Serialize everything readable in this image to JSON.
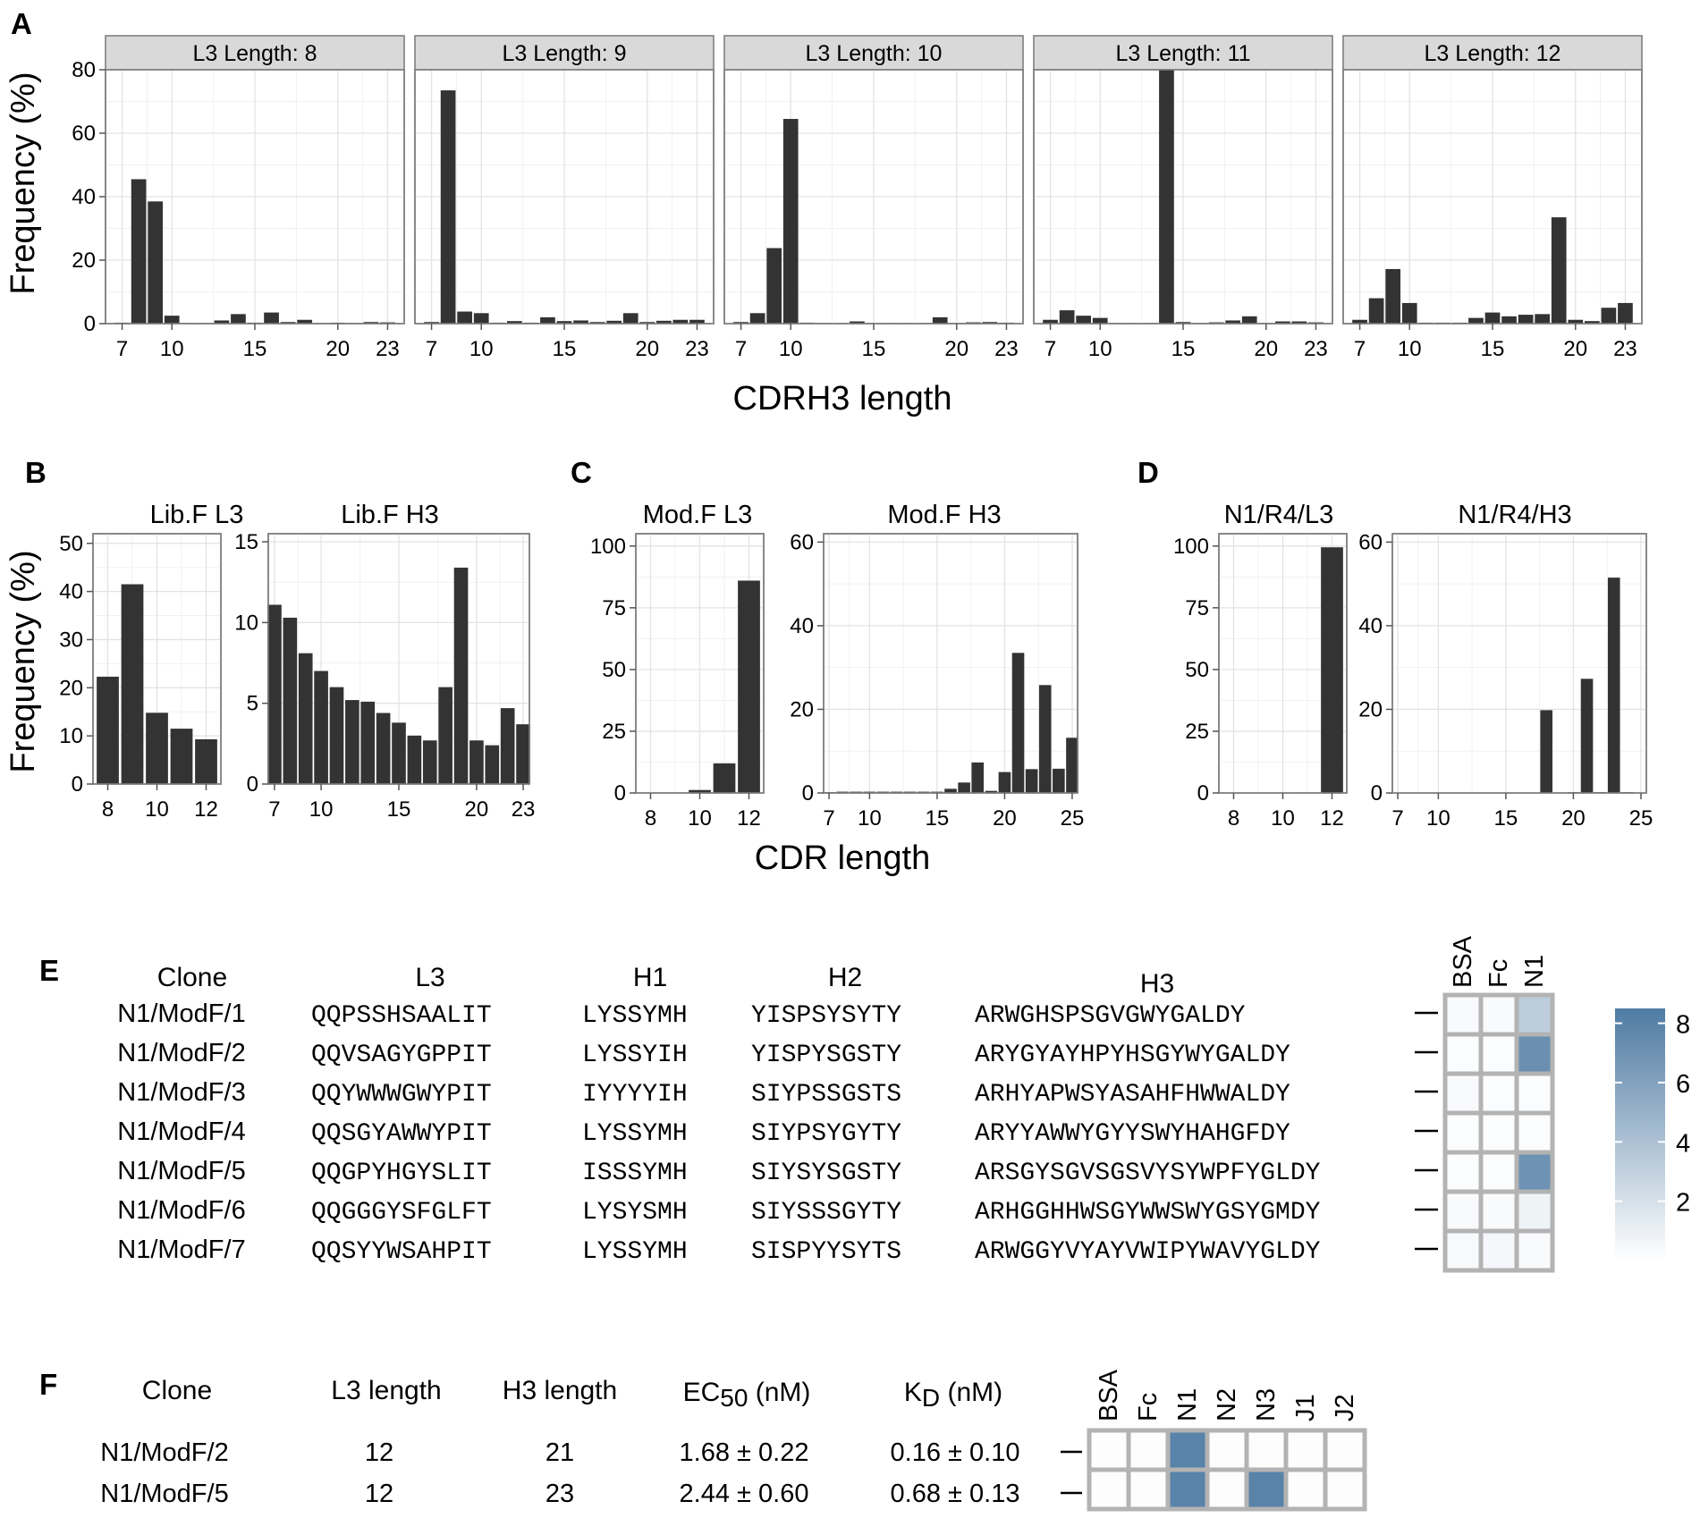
{
  "panels": {
    "A": "A",
    "B": "B",
    "C": "C",
    "D": "D",
    "E": "E",
    "F": "F"
  },
  "chart_data": [
    {
      "id": "A",
      "type": "bar",
      "title": "",
      "xlabel": "CDRH3 length",
      "ylabel": "Frequency (%)",
      "ylim": [
        0,
        80
      ],
      "yticks": [
        0,
        20,
        40,
        60,
        80
      ],
      "xlim": [
        6,
        24
      ],
      "xticks": [
        7,
        10,
        15,
        20,
        23
      ],
      "categories": [
        7,
        8,
        9,
        10,
        11,
        12,
        13,
        14,
        15,
        16,
        17,
        18,
        19,
        20,
        21,
        22,
        23
      ],
      "facets": [
        {
          "label": "L3 Length: 8",
          "values": [
            0.3,
            45.5,
            38.5,
            2.5,
            0.2,
            0.2,
            1.0,
            3.0,
            0.3,
            3.5,
            0.5,
            1.2,
            0.2,
            0.3,
            0.2,
            0.5,
            0.4
          ]
        },
        {
          "label": "L3 Length: 9",
          "values": [
            0.5,
            73.5,
            3.8,
            3.3,
            0.3,
            0.8,
            0.3,
            2.0,
            0.8,
            1.0,
            0.5,
            0.9,
            3.3,
            0.5,
            0.9,
            1.2,
            1.2
          ]
        },
        {
          "label": "L3 Length: 10",
          "values": [
            0.5,
            3.3,
            23.8,
            64.5,
            0.3,
            0.2,
            0.2,
            0.7,
            0.2,
            0.2,
            0.2,
            0.2,
            2.0,
            0.2,
            0.4,
            0.5,
            0.3
          ]
        },
        {
          "label": "L3 Length: 11",
          "values": [
            1.2,
            4.2,
            2.5,
            1.8,
            0.2,
            0.2,
            0.2,
            80.0,
            0.5,
            0.2,
            0.4,
            1.0,
            2.3,
            0.2,
            0.7,
            0.7,
            0.4
          ]
        },
        {
          "label": "L3 Length: 12",
          "values": [
            1.2,
            8.0,
            17.2,
            6.5,
            0.3,
            0.3,
            0.3,
            1.8,
            3.5,
            2.3,
            2.8,
            3.0,
            33.5,
            1.2,
            0.8,
            5.0,
            6.5
          ]
        }
      ]
    },
    {
      "id": "B",
      "type": "bar",
      "title": "",
      "xlabel": "CDR length",
      "ylabel": "Frequency (%)",
      "subplots": [
        {
          "title": "Lib.F L3",
          "ylim": [
            0,
            52
          ],
          "yticks": [
            0,
            10,
            20,
            30,
            40,
            50
          ],
          "xlim": [
            7.4,
            12.6
          ],
          "xticks": [
            8,
            10,
            12
          ],
          "categories": [
            8,
            9,
            10,
            11,
            12
          ],
          "values": [
            22.3,
            41.5,
            14.8,
            11.5,
            9.3
          ]
        },
        {
          "title": "Lib.F H3",
          "ylim": [
            0,
            15.5
          ],
          "yticks": [
            0,
            5,
            10,
            15
          ],
          "xlim": [
            6.6,
            23.4
          ],
          "xticks": [
            7,
            10,
            15,
            20,
            23
          ],
          "categories": [
            7,
            8,
            9,
            10,
            11,
            12,
            13,
            14,
            15,
            16,
            17,
            18,
            19,
            20,
            21,
            22,
            23
          ],
          "values": [
            11.1,
            10.3,
            8.1,
            7.0,
            6.0,
            5.2,
            5.1,
            4.4,
            3.8,
            3.0,
            2.7,
            6.0,
            13.4,
            2.7,
            2.4,
            4.7,
            3.7
          ]
        }
      ]
    },
    {
      "id": "C",
      "type": "bar",
      "title": "",
      "xlabel": "CDR length",
      "ylabel": "",
      "subplots": [
        {
          "title": "Mod.F L3",
          "ylim": [
            0,
            105
          ],
          "yticks": [
            0,
            25,
            50,
            75,
            100
          ],
          "xlim": [
            7.4,
            12.6
          ],
          "xticks": [
            8,
            10,
            12
          ],
          "categories": [
            8,
            9,
            10,
            11,
            12
          ],
          "values": [
            0.2,
            0.2,
            1.2,
            12.0,
            86.0
          ]
        },
        {
          "title": "Mod.F H3",
          "ylim": [
            0,
            62
          ],
          "yticks": [
            0,
            20,
            40,
            60
          ],
          "xlim": [
            6.6,
            25.4
          ],
          "xticks": [
            7,
            10,
            15,
            20,
            25
          ],
          "categories": [
            7,
            8,
            9,
            10,
            11,
            12,
            13,
            14,
            15,
            16,
            17,
            18,
            19,
            20,
            21,
            22,
            23,
            24,
            25
          ],
          "values": [
            0.2,
            0.3,
            0.3,
            0.3,
            0.3,
            0.3,
            0.3,
            0.3,
            0.3,
            1.0,
            2.5,
            7.3,
            0.5,
            5.0,
            33.5,
            5.7,
            25.8,
            5.8,
            13.2
          ]
        }
      ]
    },
    {
      "id": "D",
      "type": "bar",
      "title": "",
      "xlabel": "",
      "ylabel": "",
      "subplots": [
        {
          "title": "N1/R4/L3",
          "ylim": [
            0,
            105
          ],
          "yticks": [
            0,
            25,
            50,
            75,
            100
          ],
          "xlim": [
            7.4,
            12.6
          ],
          "xticks": [
            8,
            10,
            12
          ],
          "categories": [
            8,
            9,
            10,
            11,
            12
          ],
          "values": [
            0,
            0,
            0,
            0.2,
            99.5
          ]
        },
        {
          "title": "N1/R4/H3",
          "ylim": [
            0,
            62
          ],
          "yticks": [
            0,
            20,
            40,
            60
          ],
          "xlim": [
            6.6,
            25.4
          ],
          "xticks": [
            7,
            10,
            15,
            20,
            25
          ],
          "categories": [
            7,
            8,
            9,
            10,
            11,
            12,
            13,
            14,
            15,
            16,
            17,
            18,
            19,
            20,
            21,
            22,
            23,
            24,
            25
          ],
          "values": [
            0,
            0,
            0,
            0,
            0,
            0.1,
            0.1,
            0,
            0,
            0.1,
            0,
            19.8,
            0.1,
            0.2,
            27.3,
            0.2,
            51.5,
            0.2,
            0
          ]
        }
      ]
    }
  ],
  "tableE": {
    "headers": {
      "clone": "Clone",
      "l3": "L3",
      "h1": "H1",
      "h2": "H2",
      "h3": "H3"
    },
    "heat_columns": [
      "BSA",
      "Fc",
      "N1"
    ],
    "legend_ticks": [
      "8",
      "6",
      "4",
      "2"
    ],
    "legend_colors": {
      "high": "#4f7ba3",
      "low": "#ffffff"
    },
    "rows": [
      {
        "clone": "N1/ModF/1",
        "l3": "QQPSSHSAALIT",
        "h1": "LYSSYMH",
        "h2": "YISPSYSYTY",
        "h3": "ARWGHSPSGVGWYGALDY",
        "heat": [
          0.3,
          0.3,
          3.2
        ]
      },
      {
        "clone": "N1/ModF/2",
        "l3": "QQVSAGYGPPIT",
        "h1": "LYSSYIH",
        "h2": "YISPYSGSTY",
        "h3": "ARYGYAYHPYHSGYWYGALDY",
        "heat": [
          0.2,
          0.2,
          7.2
        ]
      },
      {
        "clone": "N1/ModF/3",
        "l3": "QQYWWWGWYPIT",
        "h1": "IYYYYIH",
        "h2": "SIYPSSGSTS",
        "h3": "ARHYAPWSYASAHFHWWALDY",
        "heat": [
          0.3,
          0.2,
          0.2
        ]
      },
      {
        "clone": "N1/ModF/4",
        "l3": "QQSGYAWWYPIT",
        "h1": "LYSSYMH",
        "h2": "SIYPSYGYTY",
        "h3": "ARYYAWWYGYYSWYHAHGFDY",
        "heat": [
          0.2,
          0.2,
          0.2
        ]
      },
      {
        "clone": "N1/ModF/5",
        "l3": "QQGPYHGYSLIT",
        "h1": "ISSSYMH",
        "h2": "SIYSYSGSTY",
        "h3": "ARSGYSGVSGSVYSYWPFYGLDY",
        "heat": [
          0.2,
          0.2,
          7.0
        ]
      },
      {
        "clone": "N1/ModF/6",
        "l3": "QQGGGYSFGLFT",
        "h1": "LYSYSMH",
        "h2": "SIYSSSGYTY",
        "h3": "ARHGGHHWSGYWWSWYGSYGMDY",
        "heat": [
          0.3,
          0.3,
          0.8
        ]
      },
      {
        "clone": "N1/ModF/7",
        "l3": "QQSYYWSAHPIT",
        "h1": "LYSSYMH",
        "h2": "SISPYYSYTS",
        "h3": "ARWGGYVYAYVWIPYWAVYGLDY",
        "heat": [
          0.4,
          0.5,
          0.3
        ]
      }
    ]
  },
  "tableF": {
    "headers": {
      "clone": "Clone",
      "l3": "L3 length",
      "h3": "H3 length",
      "ec50_main": "EC",
      "ec50_sub": "50",
      "ec50_unit": " (nM)",
      "kd_main": "K",
      "kd_sub": "D",
      "kd_unit": " (nM)"
    },
    "heat_columns": [
      "BSA",
      "Fc",
      "N1",
      "N2",
      "N3",
      "J1",
      "J2"
    ],
    "rows": [
      {
        "clone": "N1/ModF/2",
        "l3": "12",
        "h3": "21",
        "ec50": "1.68 ± 0.22",
        "kd": "0.16 ± 0.10",
        "heat": [
          0.1,
          0.1,
          8,
          0.1,
          0.1,
          0.1,
          0.1
        ]
      },
      {
        "clone": "N1/ModF/5",
        "l3": "12",
        "h3": "23",
        "ec50": "2.44 ± 0.60",
        "kd": "0.68 ± 0.13",
        "heat": [
          0.1,
          0.1,
          8,
          0.1,
          8,
          0.1,
          0.1
        ]
      }
    ]
  }
}
